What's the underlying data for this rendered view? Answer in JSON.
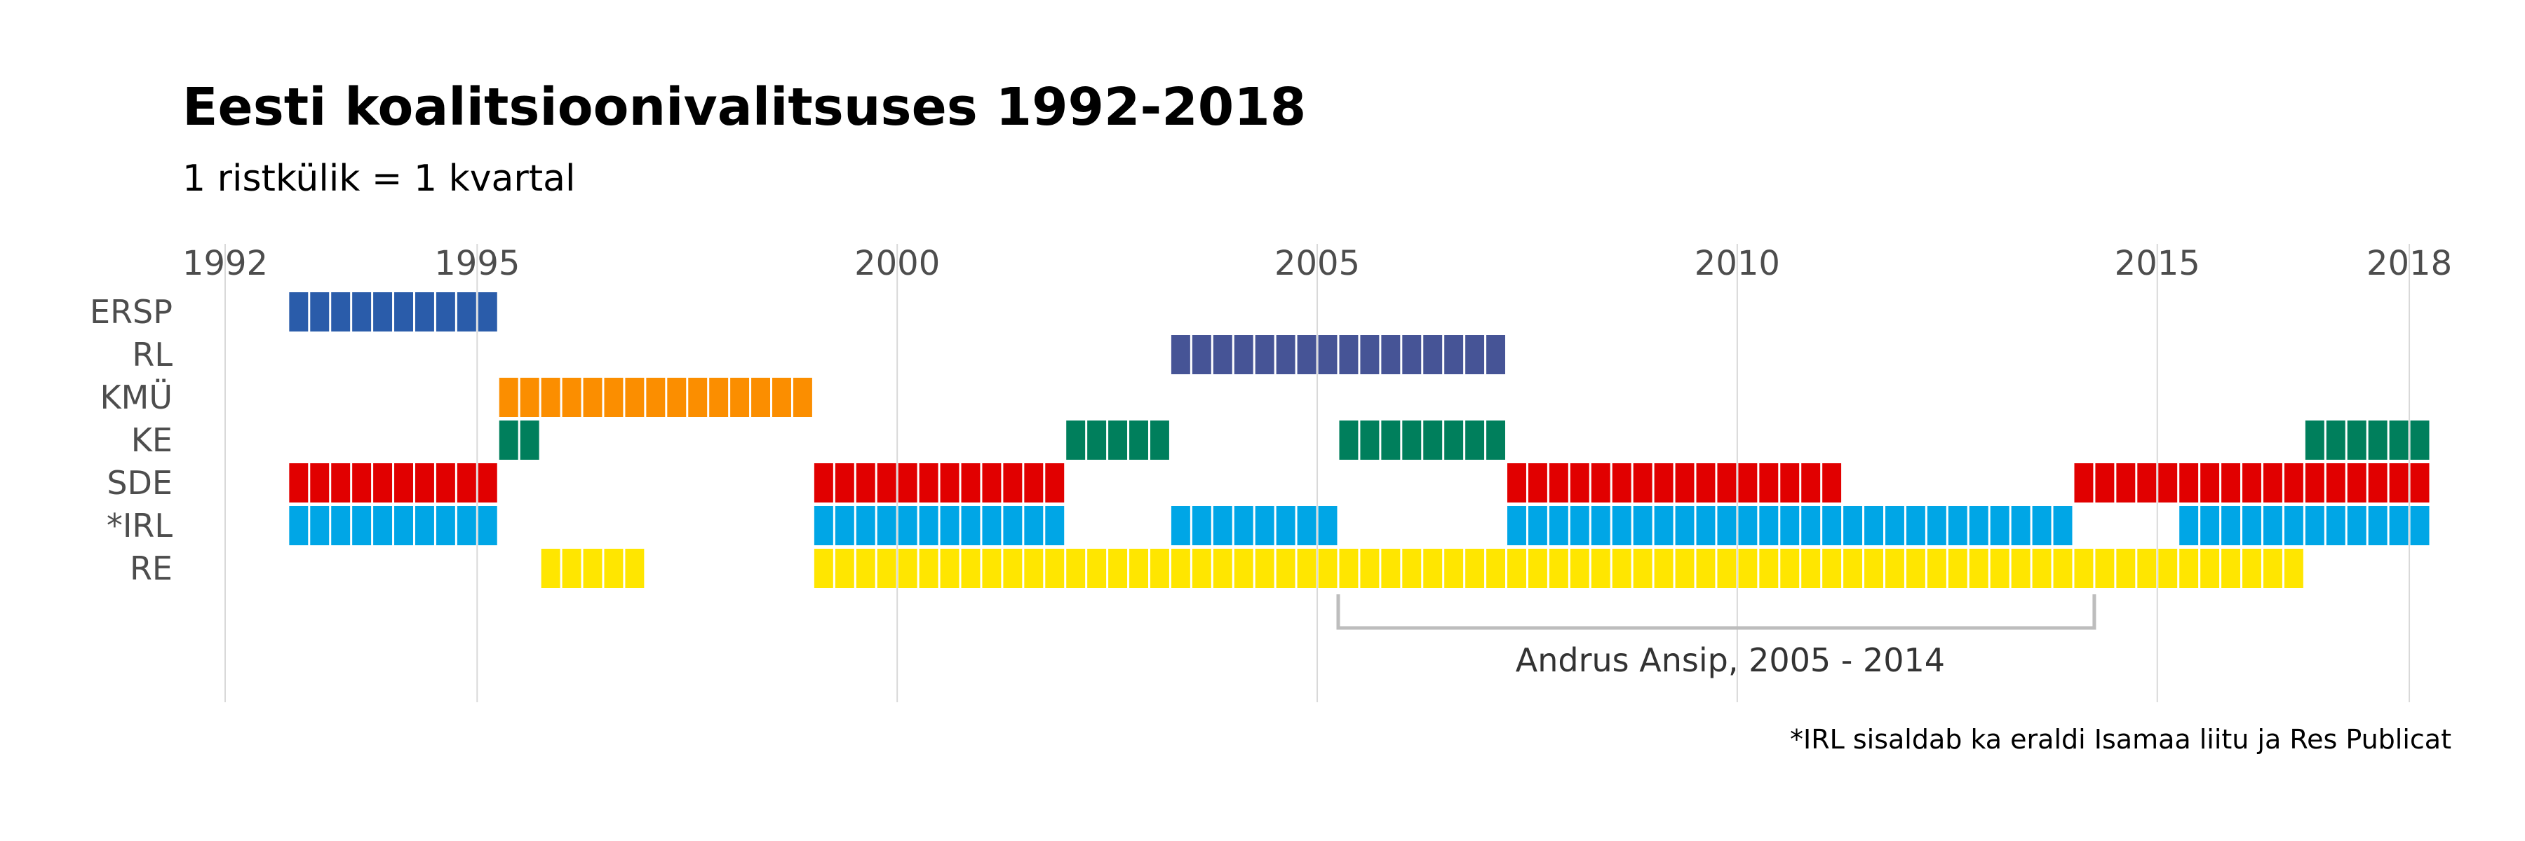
{
  "chart_data": {
    "type": "waffle-timeline",
    "title": "Eesti koalitsioonivalitsuses 1992-2018",
    "subtitle": "1 ristkülik = 1 kvartal",
    "x_ticks": [
      "1992",
      "1995",
      "2000",
      "2005",
      "2010",
      "2015",
      "2018"
    ],
    "x_tick_values": [
      1992,
      1995,
      2000,
      2005,
      2010,
      2015,
      2018
    ],
    "x_range": [
      1992,
      2018.25
    ],
    "grid": true,
    "categories": [
      "ERSP",
      "RL",
      "KMÜ",
      "KE",
      "SDE",
      "*IRL",
      "RE"
    ],
    "series": [
      {
        "category": "ERSP",
        "color": "#2a5caa",
        "periods": [
          {
            "start": 1992.75,
            "quarters": 10
          }
        ]
      },
      {
        "category": "RL",
        "color": "#465496",
        "periods": [
          {
            "start": 2003.25,
            "quarters": 16
          }
        ]
      },
      {
        "category": "KMÜ",
        "color": "#fb8e00",
        "periods": [
          {
            "start": 1995.25,
            "quarters": 15
          }
        ]
      },
      {
        "category": "KE",
        "color": "#007f5c",
        "periods": [
          {
            "start": 1995.25,
            "quarters": 2
          },
          {
            "start": 2002.0,
            "quarters": 5
          },
          {
            "start": 2005.25,
            "quarters": 8
          },
          {
            "start": 2016.75,
            "quarters": 6
          }
        ]
      },
      {
        "category": "SDE",
        "color": "#e10000",
        "periods": [
          {
            "start": 1992.75,
            "quarters": 10
          },
          {
            "start": 1999.0,
            "quarters": 12
          },
          {
            "start": 2007.25,
            "quarters": 16
          },
          {
            "start": 2014.0,
            "quarters": 17
          }
        ]
      },
      {
        "category": "*IRL",
        "color": "#00a6e6",
        "periods": [
          {
            "start": 1992.75,
            "quarters": 10
          },
          {
            "start": 1999.0,
            "quarters": 12
          },
          {
            "start": 2003.25,
            "quarters": 8
          },
          {
            "start": 2007.25,
            "quarters": 27
          },
          {
            "start": 2015.25,
            "quarters": 12
          }
        ]
      },
      {
        "category": "RE",
        "color": "#ffe600",
        "periods": [
          {
            "start": 1995.75,
            "quarters": 5
          },
          {
            "start": 1999.0,
            "quarters": 71
          }
        ]
      }
    ],
    "annotation": {
      "text": "Andrus Ansip, 2005 - 2014",
      "start": 2005.25,
      "end": 2014.25
    },
    "footnote": "*IRL sisaldab ka eraldi Isamaa liitu ja Res Publicat"
  }
}
